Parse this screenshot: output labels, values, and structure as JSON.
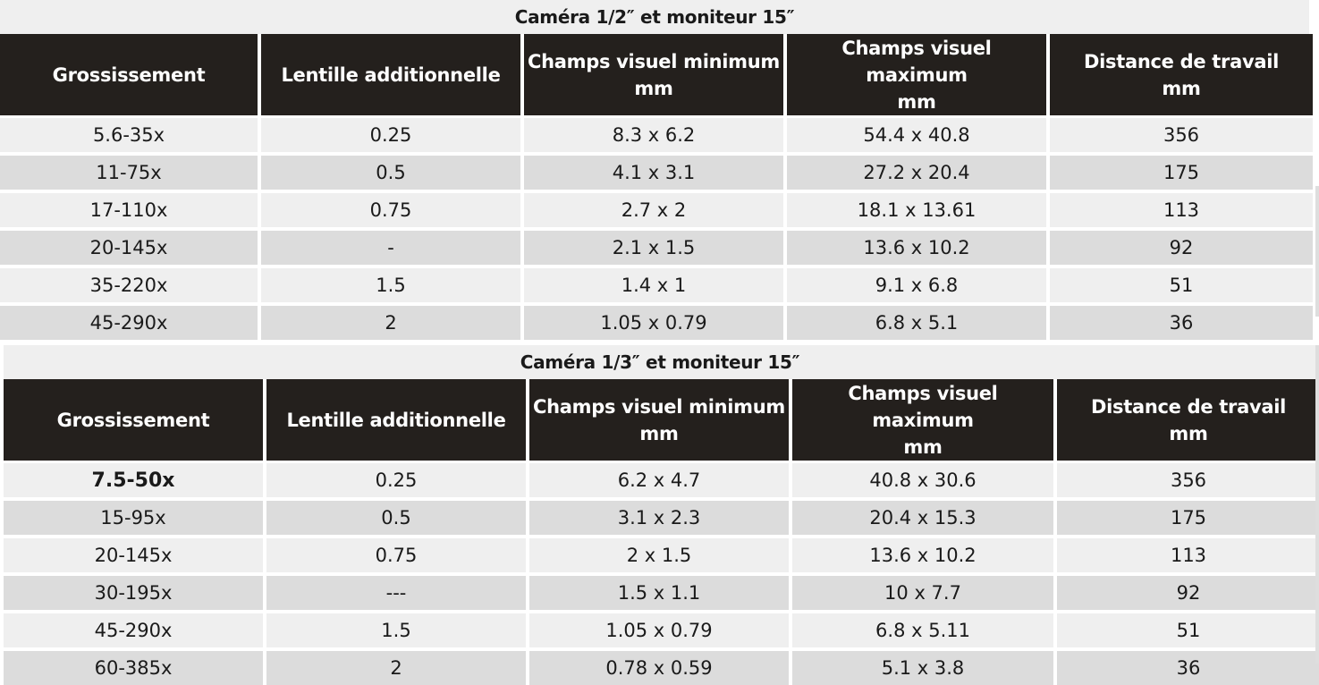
{
  "tables": [
    {
      "caption": "Caméra 1/2″ et moniteur 15″",
      "headers": [
        [
          "Grossissement"
        ],
        [
          "Lentille additionnelle"
        ],
        [
          "Champs visuel minimum",
          "mm"
        ],
        [
          "Champs visuel maximum",
          "mm"
        ],
        [
          "Distance de travail",
          "mm"
        ]
      ],
      "rows": [
        [
          "5.6-35x",
          "0.25",
          "8.3 x 6.2",
          "54.4 x 40.8",
          "356"
        ],
        [
          "11-75x",
          "0.5",
          "4.1 x 3.1",
          "27.2 x 20.4",
          "175"
        ],
        [
          "17-110x",
          "0.75",
          "2.7 x 2",
          "18.1 x 13.61",
          "113"
        ],
        [
          "20-145x",
          "-",
          "2.1 x 1.5",
          "13.6 x 10.2",
          "92"
        ],
        [
          "35-220x",
          "1.5",
          "1.4 x 1",
          "9.1 x 6.8",
          "51"
        ],
        [
          "45-290x",
          "2",
          "1.05 x 0.79",
          "6.8 x 5.1",
          "36"
        ]
      ]
    },
    {
      "caption": "Caméra 1/3″ et moniteur 15″",
      "headers": [
        [
          "Grossissement"
        ],
        [
          "Lentille additionnelle"
        ],
        [
          "Champs visuel minimum",
          "mm"
        ],
        [
          "Champs visuel maximum",
          "mm"
        ],
        [
          "Distance de travail",
          "mm"
        ]
      ],
      "rows": [
        [
          "7.5-50x",
          "0.25",
          "6.2 x 4.7",
          "40.8 x 30.6",
          "356"
        ],
        [
          "15-95x",
          "0.5",
          "3.1 x 2.3",
          "20.4 x 15.3",
          "175"
        ],
        [
          "20-145x",
          "0.75",
          "2 x 1.5",
          "13.6 x 10.2",
          "113"
        ],
        [
          "30-195x",
          "---",
          "1.5 x 1.1",
          "10 x 7.7",
          "92"
        ],
        [
          "45-290x",
          "1.5",
          "1.05 x 0.79",
          "6.8 x 5.11",
          "51"
        ],
        [
          "60-385x",
          "2",
          "0.78 x 0.59",
          "5.1 x 3.8",
          "36"
        ]
      ]
    }
  ]
}
